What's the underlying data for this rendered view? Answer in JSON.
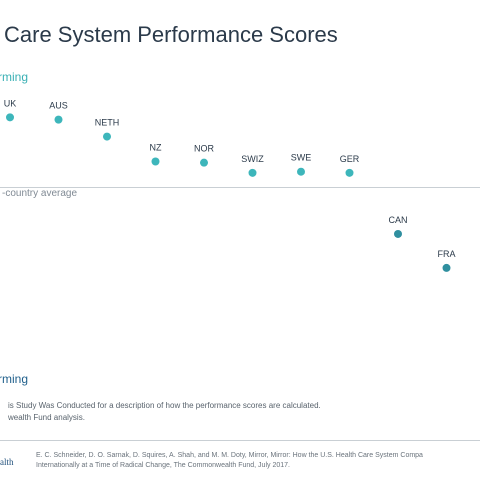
{
  "title": "Care System Performance Scores",
  "chart_data": {
    "type": "scatter",
    "top_label": "rming",
    "bottom_label": "rming",
    "average_label": "-country average",
    "average": 0,
    "colors": {
      "above": "#3db6bb",
      "below": "#2f8f9f",
      "average_line": "#c9cfd4"
    },
    "points": [
      {
        "label": "UK",
        "y": 0.62
      },
      {
        "label": "AUS",
        "y": 0.6
      },
      {
        "label": "NETH",
        "y": 0.45
      },
      {
        "label": "NZ",
        "y": 0.23
      },
      {
        "label": "NOR",
        "y": 0.22
      },
      {
        "label": "SWIZ",
        "y": 0.13
      },
      {
        "label": "SWE",
        "y": 0.14
      },
      {
        "label": "GER",
        "y": 0.13
      },
      {
        "label": "CAN",
        "y": -0.41
      },
      {
        "label": "FRA",
        "y": -0.71
      }
    ],
    "ylim": [
      -1.7,
      0.95
    ]
  },
  "notes": {
    "line1": "is Study Was Conducted for a description of how the performance scores are calculated.",
    "line2": "wealth Fund analysis."
  },
  "footer": {
    "brand": "ealth",
    "citation_line1": "E. C. Schneider, D. O. Sarnak, D. Squires, A. Shah, and M. M. Doty, Mirror, Mirror: How the U.S. Health Care System Compa",
    "citation_line2": "Internationally at a Time of Radical Change, The Commonwealth Fund, July 2017."
  }
}
